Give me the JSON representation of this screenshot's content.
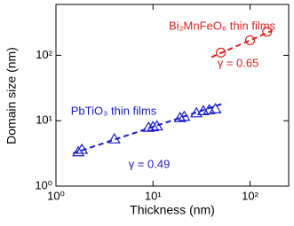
{
  "chart_data": {
    "type": "scatter",
    "xlabel": "Thickness (nm)",
    "ylabel": "Domain size (nm)",
    "log_x": true,
    "log_y": true,
    "xlim": [
      1,
      250
    ],
    "ylim": [
      1,
      600
    ],
    "xticks": [
      {
        "value": 1,
        "label": "10⁰"
      },
      {
        "value": 10,
        "label": "10¹"
      },
      {
        "value": 100,
        "label": "10²"
      }
    ],
    "yticks": [
      {
        "value": 1,
        "label": "10⁰"
      },
      {
        "value": 10,
        "label": "10¹"
      },
      {
        "value": 100,
        "label": "10²"
      }
    ],
    "series": [
      {
        "name": "PbTiO₃ thin films",
        "color": "#1a1acc",
        "marker": "triangle",
        "x": [
          1.7,
          1.85,
          4,
          9,
          10,
          11,
          19,
          21,
          28,
          33,
          38,
          44
        ],
        "values": [
          3.3,
          3.6,
          5.2,
          7.8,
          8,
          8.2,
          11,
          11.5,
          13,
          14,
          14.5,
          15
        ]
      },
      {
        "name": "Bi₂MnFeO₆ thin films",
        "color": "#e02020",
        "marker": "circle",
        "x": [
          50,
          100,
          150
        ],
        "values": [
          110,
          170,
          230
        ]
      }
    ],
    "fits": [
      {
        "color": "#1a1acc",
        "x": [
          1.5,
          55
        ],
        "values": [
          3.17,
          18.7
        ]
      },
      {
        "color": "#e02020",
        "x": [
          40,
          170
        ],
        "values": [
          93.8,
          239
        ]
      }
    ],
    "annotations": [
      "γ = 0.49",
      "γ = 0.65"
    ]
  }
}
